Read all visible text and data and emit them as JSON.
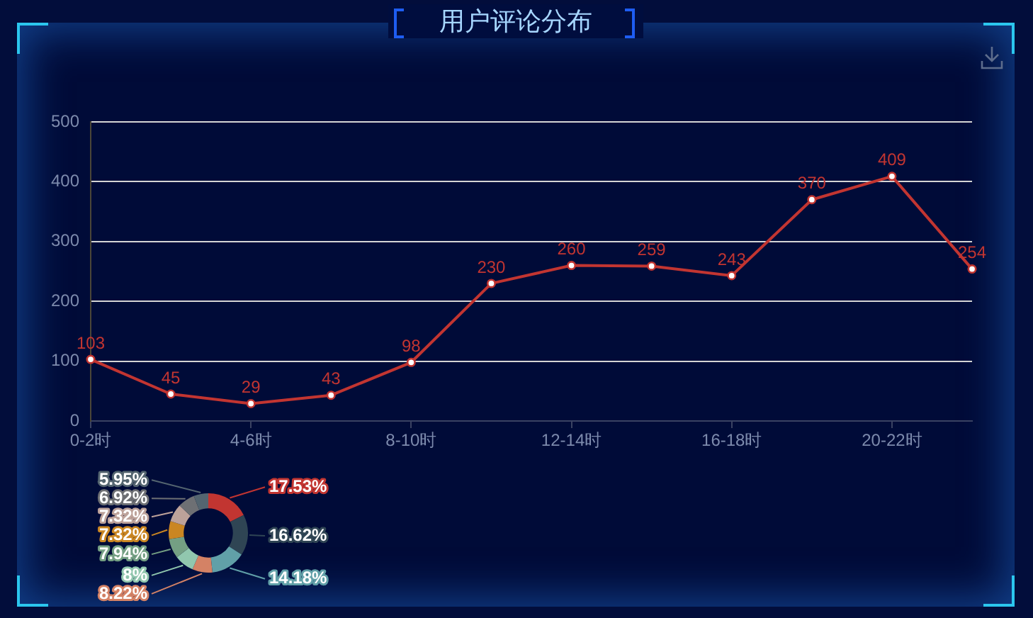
{
  "chart_data": [
    {
      "type": "line",
      "title": "用户评论分布",
      "categories": [
        "0-2时",
        null,
        "4-6时",
        null,
        "8-10时",
        null,
        "12-14时",
        null,
        "16-18时",
        null,
        "20-22时",
        null
      ],
      "values": [
        103,
        45,
        29,
        43,
        98,
        230,
        260,
        259,
        243,
        370,
        409,
        254
      ],
      "color": "#c23531",
      "ylim": [
        0,
        500
      ],
      "yticks": [
        0,
        100,
        200,
        300,
        400,
        500
      ],
      "grid": "y",
      "marker": "circle",
      "line_style": "solid",
      "data_labels": true
    },
    {
      "type": "donut",
      "categories": [
        null,
        null,
        null,
        null,
        null,
        null,
        null,
        null,
        null,
        null
      ],
      "values": [
        17.53,
        16.62,
        14.18,
        8.22,
        8,
        7.94,
        7.32,
        7.32,
        6.92,
        5.95
      ],
      "colors": [
        "#c23531",
        "#2f4554",
        "#61a0a8",
        "#d48265",
        "#91c7ae",
        "#749f83",
        "#ca8622",
        "#bda29a",
        "#6e7074",
        "#546570"
      ],
      "value_labels": [
        "17.53%",
        "16.62%",
        "14.18%",
        "8.22%",
        "8%",
        "7.94%",
        "7.32%",
        "7.32%",
        "6.92%",
        "5.95%"
      ]
    }
  ]
}
